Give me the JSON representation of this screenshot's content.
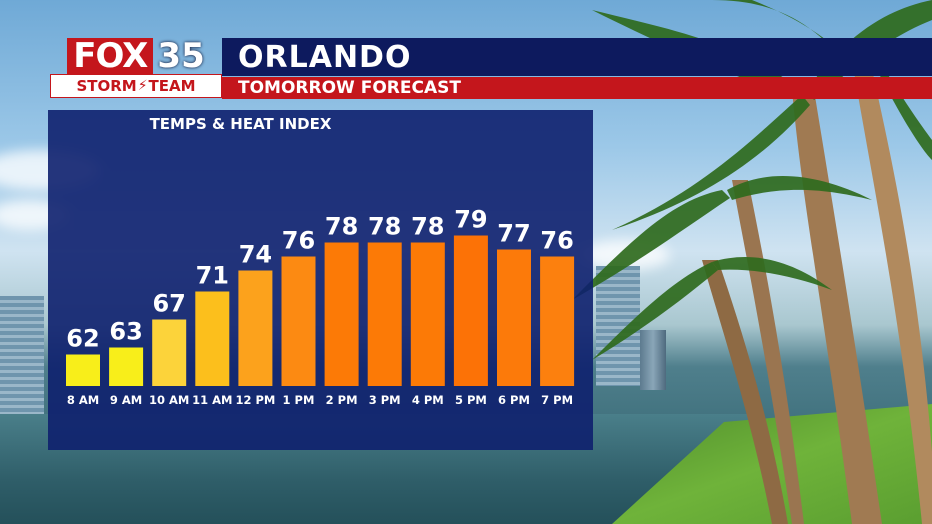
{
  "header": {
    "logo_fox": "FOX",
    "logo_number": "35",
    "logo_team_left": "STORM",
    "logo_team_right": "TEAM",
    "city": "ORLANDO",
    "subtitle": "TOMORROW FORECAST"
  },
  "colors": {
    "brand_navy": "#0d1a5e",
    "brand_red": "#c4161c",
    "panel": "#0e206e"
  },
  "chart_data": {
    "type": "bar",
    "title": "TEMPS & HEAT INDEX",
    "categories": [
      "8 AM",
      "9 AM",
      "10 AM",
      "11 AM",
      "12 PM",
      "1 PM",
      "2 PM",
      "3 PM",
      "4 PM",
      "5 PM",
      "6 PM",
      "7 PM"
    ],
    "values": [
      62,
      63,
      67,
      71,
      74,
      76,
      78,
      78,
      78,
      79,
      77,
      76
    ],
    "bar_colors": [
      "#f8ee1a",
      "#f8ee1a",
      "#fcd33a",
      "#fcbf1c",
      "#fca21c",
      "#fc8a12",
      "#fc7a06",
      "#fc7a06",
      "#fc7a06",
      "#fc7206",
      "#fc7a0a",
      "#fc800e"
    ]
  }
}
